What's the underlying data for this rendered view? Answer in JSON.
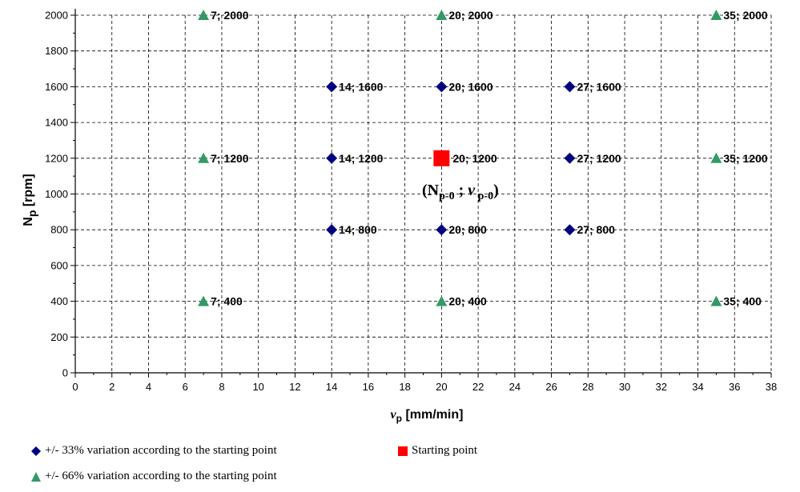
{
  "chart_data": {
    "type": "scatter",
    "xlabel": "v_p [mm/min]",
    "xlabel_main": "v",
    "xlabel_sub": "p",
    "xlabel_unit": " [mm/min]",
    "ylabel": "N_p [rpm]",
    "ylabel_main": "N",
    "ylabel_sub": "p",
    "ylabel_unit": " [rpm]",
    "xlim": [
      0,
      38
    ],
    "ylim": [
      0,
      2000
    ],
    "x_ticks": [
      "0",
      "2",
      "4",
      "6",
      "8",
      "10",
      "12",
      "14",
      "16",
      "18",
      "20",
      "22",
      "24",
      "26",
      "28",
      "30",
      "32",
      "34",
      "36",
      "38"
    ],
    "y_ticks": [
      "0",
      "200",
      "400",
      "600",
      "800",
      "1000",
      "1200",
      "1400",
      "1600",
      "1800",
      "2000"
    ],
    "grid": true,
    "series": [
      {
        "name": "+/- 33% variation according to the starting point",
        "marker": "diamond",
        "color": "#000080",
        "points": [
          {
            "x": 14,
            "y": 1600,
            "label": "14; 1600"
          },
          {
            "x": 20,
            "y": 1600,
            "label": "20; 1600"
          },
          {
            "x": 27,
            "y": 1600,
            "label": "27; 1600"
          },
          {
            "x": 14,
            "y": 1200,
            "label": "14; 1200"
          },
          {
            "x": 27,
            "y": 1200,
            "label": "27; 1200"
          },
          {
            "x": 14,
            "y": 800,
            "label": "14; 800"
          },
          {
            "x": 20,
            "y": 800,
            "label": "20; 800"
          },
          {
            "x": 27,
            "y": 800,
            "label": "27; 800"
          }
        ]
      },
      {
        "name": "+/- 66% variation according to the starting point",
        "marker": "triangle",
        "color": "#339966",
        "points": [
          {
            "x": 7,
            "y": 2000,
            "label": "7; 2000"
          },
          {
            "x": 20,
            "y": 2000,
            "label": "20; 2000"
          },
          {
            "x": 35,
            "y": 2000,
            "label": "35; 2000"
          },
          {
            "x": 7,
            "y": 1200,
            "label": "7; 1200"
          },
          {
            "x": 35,
            "y": 1200,
            "label": "35; 1200"
          },
          {
            "x": 7,
            "y": 400,
            "label": "7; 400"
          },
          {
            "x": 20,
            "y": 400,
            "label": "20; 400"
          },
          {
            "x": 35,
            "y": 400,
            "label": "35; 400"
          }
        ]
      },
      {
        "name": "Starting point",
        "marker": "square",
        "color": "#ff0000",
        "points": [
          {
            "x": 20,
            "y": 1200,
            "label": "20; 1200"
          }
        ]
      }
    ],
    "annotation": {
      "x": 20,
      "y": 1200,
      "open": "(",
      "n": "N",
      "n_sub": "p-0",
      "sep": " ; ",
      "v": "v",
      "v_sub": " p-0",
      "close": ")"
    },
    "legend_position": "bottom-left"
  }
}
